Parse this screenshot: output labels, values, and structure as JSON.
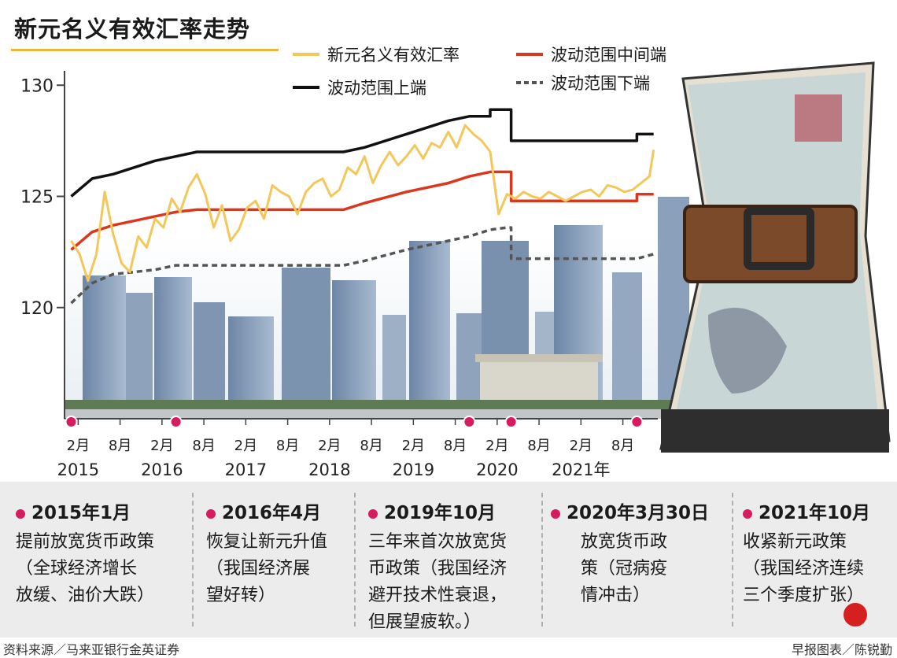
{
  "title": "新元名义有效汇率走势",
  "legend": {
    "neer": "新元名义有效汇率",
    "mid": "波动范围中间端",
    "upper": "波动范围上端",
    "lower": "波动范围下端"
  },
  "colors": {
    "neer": "#f3c75a",
    "mid": "#d9381e",
    "upper": "#111111",
    "lower": "#555555",
    "event_dot": "#d81b60",
    "title_rule": "#e9b93f"
  },
  "events": [
    {
      "date": "2015年1月",
      "desc": [
        "提前放宽货币政策",
        "（全球经济增长",
        "放缓、油价大跌）"
      ]
    },
    {
      "date": "2016年4月",
      "desc": [
        "恢复让新元升值",
        "（我国经济展",
        "望好转）"
      ]
    },
    {
      "date": "2019年10月",
      "desc": [
        "三年来首次放宽货",
        "币政策（我国经济",
        "避开技术性衰退，",
        "但展望疲软。）"
      ]
    },
    {
      "date": "2020年3月30日",
      "desc": [
        "放宽货币政",
        "策（冠病疫",
        "情冲击）"
      ]
    },
    {
      "date": "2021年10月",
      "desc": [
        "收紧新元政策",
        "（我国经济连续",
        "三个季度扩张）"
      ]
    }
  ],
  "footer": {
    "source": "资料来源／马来亚银行金英证券",
    "credit": "早报图表／陈锐勤"
  },
  "chart_data": {
    "type": "line",
    "ylim": [
      115,
      131
    ],
    "yticks": [
      120,
      125,
      130
    ],
    "x_month_labels": [
      "2月",
      "8月",
      "2月",
      "8月",
      "2月",
      "8月",
      "2月",
      "8月",
      "2月",
      "8月",
      "2月",
      "8月",
      "2月",
      "8月"
    ],
    "x_month_label_dates": [
      2015.083,
      2015.583,
      2016.083,
      2016.583,
      2017.083,
      2017.583,
      2018.083,
      2018.583,
      2019.083,
      2019.583,
      2020.083,
      2020.583,
      2021.083,
      2021.583
    ],
    "x_year_labels": [
      "2015",
      "2016",
      "2017",
      "2018",
      "2019",
      "2020",
      "2021年"
    ],
    "x_year_label_dates": [
      2015.083,
      2016.083,
      2017.083,
      2018.083,
      2019.083,
      2020.083,
      2021.083
    ],
    "event_dates": [
      2015.0,
      2016.25,
      2019.75,
      2020.25,
      2021.75
    ],
    "series": [
      {
        "name": "波动范围上端",
        "key": "upper",
        "style": "solid",
        "x": [
          2015.0,
          2015.25,
          2015.5,
          2016.0,
          2016.25,
          2016.5,
          2017.0,
          2017.5,
          2018.0,
          2018.25,
          2018.5,
          2019.0,
          2019.5,
          2019.75,
          2019.9,
          2020.0,
          2020.0,
          2020.2,
          2020.25,
          2020.25,
          2021.0,
          2021.5,
          2021.75,
          2021.75,
          2021.95
        ],
        "y": [
          125.0,
          125.8,
          126.0,
          126.6,
          126.8,
          127.0,
          127.0,
          127.0,
          127.0,
          127.0,
          127.2,
          127.8,
          128.4,
          128.6,
          128.6,
          128.6,
          128.9,
          128.9,
          128.9,
          127.5,
          127.5,
          127.5,
          127.5,
          127.8,
          127.8
        ]
      },
      {
        "name": "波动范围中间端",
        "key": "mid",
        "style": "solid",
        "x": [
          2015.0,
          2015.25,
          2015.5,
          2016.0,
          2016.25,
          2016.5,
          2017.0,
          2017.5,
          2018.0,
          2018.25,
          2018.5,
          2019.0,
          2019.5,
          2019.75,
          2020.0,
          2020.2,
          2020.25,
          2020.25,
          2021.0,
          2021.5,
          2021.75,
          2021.75,
          2021.95
        ],
        "y": [
          122.6,
          123.4,
          123.7,
          124.1,
          124.3,
          124.4,
          124.4,
          124.4,
          124.4,
          124.4,
          124.7,
          125.2,
          125.6,
          125.9,
          126.1,
          126.1,
          126.1,
          124.8,
          124.8,
          124.8,
          124.8,
          125.1,
          125.1
        ]
      },
      {
        "name": "波动范围下端",
        "key": "lower",
        "style": "dashed",
        "x": [
          2015.0,
          2015.25,
          2015.5,
          2016.0,
          2016.25,
          2016.5,
          2017.0,
          2017.5,
          2018.0,
          2018.25,
          2018.5,
          2019.0,
          2019.5,
          2019.75,
          2020.0,
          2020.2,
          2020.25,
          2020.25,
          2021.0,
          2021.5,
          2021.75,
          2021.95
        ],
        "y": [
          120.2,
          121.1,
          121.5,
          121.7,
          121.9,
          121.9,
          121.9,
          121.9,
          121.9,
          121.9,
          122.1,
          122.6,
          123.0,
          123.2,
          123.5,
          123.6,
          123.6,
          122.2,
          122.2,
          122.2,
          122.2,
          122.4
        ]
      },
      {
        "name": "新元名义有效汇率",
        "key": "neer",
        "style": "solid",
        "x": [
          2015.0,
          2015.1,
          2015.2,
          2015.3,
          2015.4,
          2015.5,
          2015.6,
          2015.7,
          2015.8,
          2015.9,
          2016.0,
          2016.1,
          2016.2,
          2016.3,
          2016.4,
          2016.5,
          2016.6,
          2016.7,
          2016.8,
          2016.9,
          2017.0,
          2017.1,
          2017.2,
          2017.3,
          2017.4,
          2017.5,
          2017.6,
          2017.7,
          2017.8,
          2017.9,
          2018.0,
          2018.1,
          2018.2,
          2018.3,
          2018.4,
          2018.5,
          2018.6,
          2018.7,
          2018.8,
          2018.9,
          2019.0,
          2019.1,
          2019.2,
          2019.3,
          2019.4,
          2019.5,
          2019.6,
          2019.7,
          2019.8,
          2019.9,
          2020.0,
          2020.1,
          2020.2,
          2020.3,
          2020.4,
          2020.5,
          2020.6,
          2020.7,
          2020.8,
          2020.9,
          2021.0,
          2021.1,
          2021.2,
          2021.3,
          2021.4,
          2021.5,
          2021.6,
          2021.7,
          2021.8,
          2021.9,
          2021.95
        ],
        "y": [
          123.0,
          122.4,
          121.2,
          122.4,
          125.2,
          123.3,
          122.0,
          121.6,
          123.2,
          122.7,
          124.0,
          123.6,
          124.9,
          124.3,
          125.4,
          126.0,
          125.1,
          123.6,
          124.6,
          123.0,
          123.5,
          124.5,
          124.8,
          124.0,
          125.5,
          125.2,
          125.0,
          124.2,
          125.2,
          125.6,
          125.8,
          125.0,
          125.3,
          126.3,
          126.0,
          126.8,
          125.6,
          126.4,
          127.0,
          126.4,
          126.8,
          127.3,
          126.7,
          127.4,
          127.2,
          127.9,
          127.2,
          128.2,
          127.8,
          127.5,
          127.0,
          124.2,
          125.1,
          124.9,
          125.2,
          125.0,
          124.9,
          125.2,
          125.0,
          124.8,
          125.0,
          125.2,
          125.3,
          125.0,
          125.5,
          125.4,
          125.2,
          125.3,
          125.6,
          125.9,
          127.1
        ]
      }
    ]
  }
}
